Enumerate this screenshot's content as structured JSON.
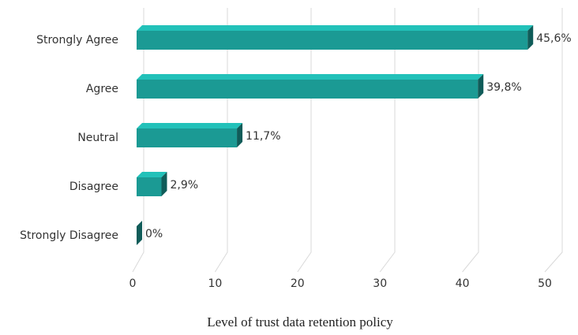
{
  "chart_data": {
    "type": "bar",
    "orientation": "horizontal",
    "style": "3d",
    "categories": [
      "Strongly Agree",
      "Agree",
      "Neutral",
      "Disagree",
      "Strongly Disagree"
    ],
    "values": [
      45.6,
      39.8,
      11.7,
      2.9,
      0
    ],
    "value_labels": [
      "45,6%",
      "39,8%",
      "11,7%",
      "2,9%",
      "0%"
    ],
    "color": "#1b9a94",
    "xlim": [
      0,
      50
    ],
    "xticks": [
      0,
      10,
      20,
      30,
      40,
      50
    ],
    "grid": true,
    "xlabel": "Level of trust data retention policy"
  }
}
